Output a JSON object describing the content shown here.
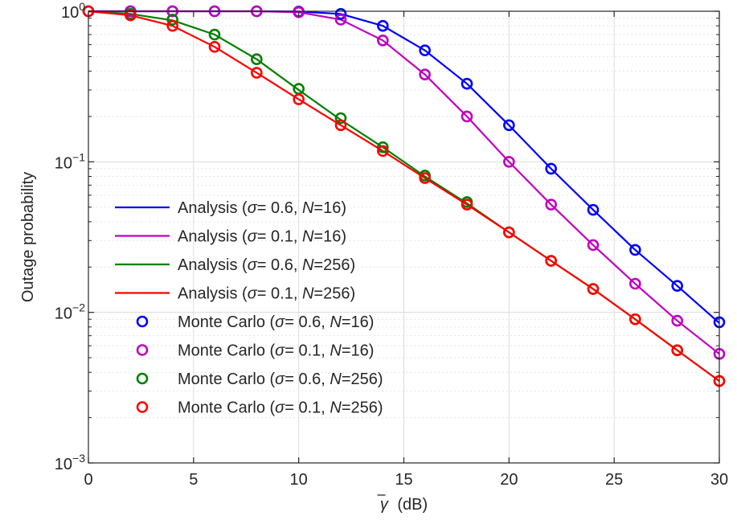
{
  "chart_data": {
    "type": "line",
    "title": "",
    "xlabel": "γ̄ (dB)",
    "xlabel_symbol": "γ",
    "xlabel_unit": "(dB)",
    "ylabel": "Outage probability",
    "xlim": [
      0,
      30
    ],
    "ylim": [
      0.001,
      1
    ],
    "yscale": "log",
    "grid": true,
    "legend_position": "center-left",
    "x_ticks": [
      "0",
      "5",
      "10",
      "15",
      "20",
      "25",
      "30"
    ],
    "y_ticks": [
      {
        "value": 1,
        "base": "10",
        "exp": "0"
      },
      {
        "value": 0.1,
        "base": "10",
        "exp": "−1"
      },
      {
        "value": 0.01,
        "base": "10",
        "exp": "−2"
      },
      {
        "value": 0.001,
        "base": "10",
        "exp": "−3"
      }
    ],
    "x": [
      0,
      2,
      4,
      6,
      8,
      10,
      12,
      14,
      16,
      18,
      20,
      22,
      24,
      26,
      28,
      30
    ],
    "series": [
      {
        "name": "Analysis (σ= 0.6, N=16)",
        "name_prefix": "Analysis (",
        "sigma": "0.6",
        "N": "16",
        "kind": "line",
        "color": "#0000ff",
        "values": [
          1.0,
          1.0,
          1.0,
          1.0,
          1.0,
          0.995,
          0.96,
          0.8,
          0.55,
          0.33,
          0.175,
          0.09,
          0.048,
          0.026,
          0.015,
          0.0085
        ]
      },
      {
        "name": "Analysis (σ= 0.1, N=16)",
        "name_prefix": "Analysis (",
        "sigma": "0.1",
        "N": "16",
        "kind": "line",
        "color": "#c000c0",
        "values": [
          1.0,
          1.0,
          1.0,
          1.0,
          1.0,
          0.985,
          0.88,
          0.64,
          0.38,
          0.2,
          0.1,
          0.052,
          0.028,
          0.0155,
          0.0088,
          0.0053
        ]
      },
      {
        "name": "Analysis (σ= 0.6, N=256)",
        "name_prefix": "Analysis (",
        "sigma": "0.6",
        "N": "256",
        "kind": "line",
        "color": "#008000",
        "values": [
          1.0,
          0.96,
          0.87,
          0.7,
          0.48,
          0.3,
          0.19,
          0.125,
          0.08,
          0.053,
          0.034,
          0.022,
          0.0143,
          0.009,
          0.0056,
          0.0035
        ]
      },
      {
        "name": "Analysis (σ= 0.1, N=256)",
        "name_prefix": "Analysis (",
        "sigma": "0.1",
        "N": "256",
        "kind": "line",
        "color": "#ff0000",
        "values": [
          1.0,
          0.94,
          0.8,
          0.58,
          0.39,
          0.26,
          0.175,
          0.118,
          0.078,
          0.052,
          0.034,
          0.022,
          0.0143,
          0.009,
          0.0056,
          0.0035
        ]
      },
      {
        "name": "Monte Carlo (σ= 0.6, N=16)",
        "name_prefix": "Monte Carlo (",
        "sigma": "0.6",
        "N": "16",
        "kind": "marker",
        "color": "#0000ff",
        "values": [
          1.0,
          1.0,
          1.0,
          1.0,
          1.0,
          0.995,
          0.96,
          0.8,
          0.55,
          0.33,
          0.175,
          0.09,
          0.048,
          0.026,
          0.015,
          0.0086
        ]
      },
      {
        "name": "Monte Carlo (σ= 0.1, N=16)",
        "name_prefix": "Monte Carlo (",
        "sigma": "0.1",
        "N": "16",
        "kind": "marker",
        "color": "#c000c0",
        "values": [
          1.0,
          1.0,
          1.0,
          1.0,
          1.0,
          0.985,
          0.88,
          0.64,
          0.38,
          0.2,
          0.1,
          0.052,
          0.028,
          0.0155,
          0.0088,
          0.0053
        ]
      },
      {
        "name": "Monte Carlo (σ= 0.6, N=256)",
        "name_prefix": "Monte Carlo (",
        "sigma": "0.6",
        "N": "256",
        "kind": "marker",
        "color": "#008000",
        "values": [
          1.0,
          0.96,
          0.88,
          0.7,
          0.48,
          0.305,
          0.195,
          0.125,
          0.081,
          0.054,
          0.034,
          0.022,
          0.0143,
          0.009,
          0.0056,
          0.0035
        ]
      },
      {
        "name": "Monte Carlo (σ= 0.1, N=256)",
        "name_prefix": "Monte Carlo (",
        "sigma": "0.1",
        "N": "256",
        "kind": "marker",
        "color": "#ff0000",
        "values": [
          1.0,
          0.94,
          0.8,
          0.58,
          0.39,
          0.26,
          0.175,
          0.118,
          0.078,
          0.052,
          0.034,
          0.022,
          0.0143,
          0.009,
          0.0056,
          0.0035
        ]
      }
    ]
  }
}
